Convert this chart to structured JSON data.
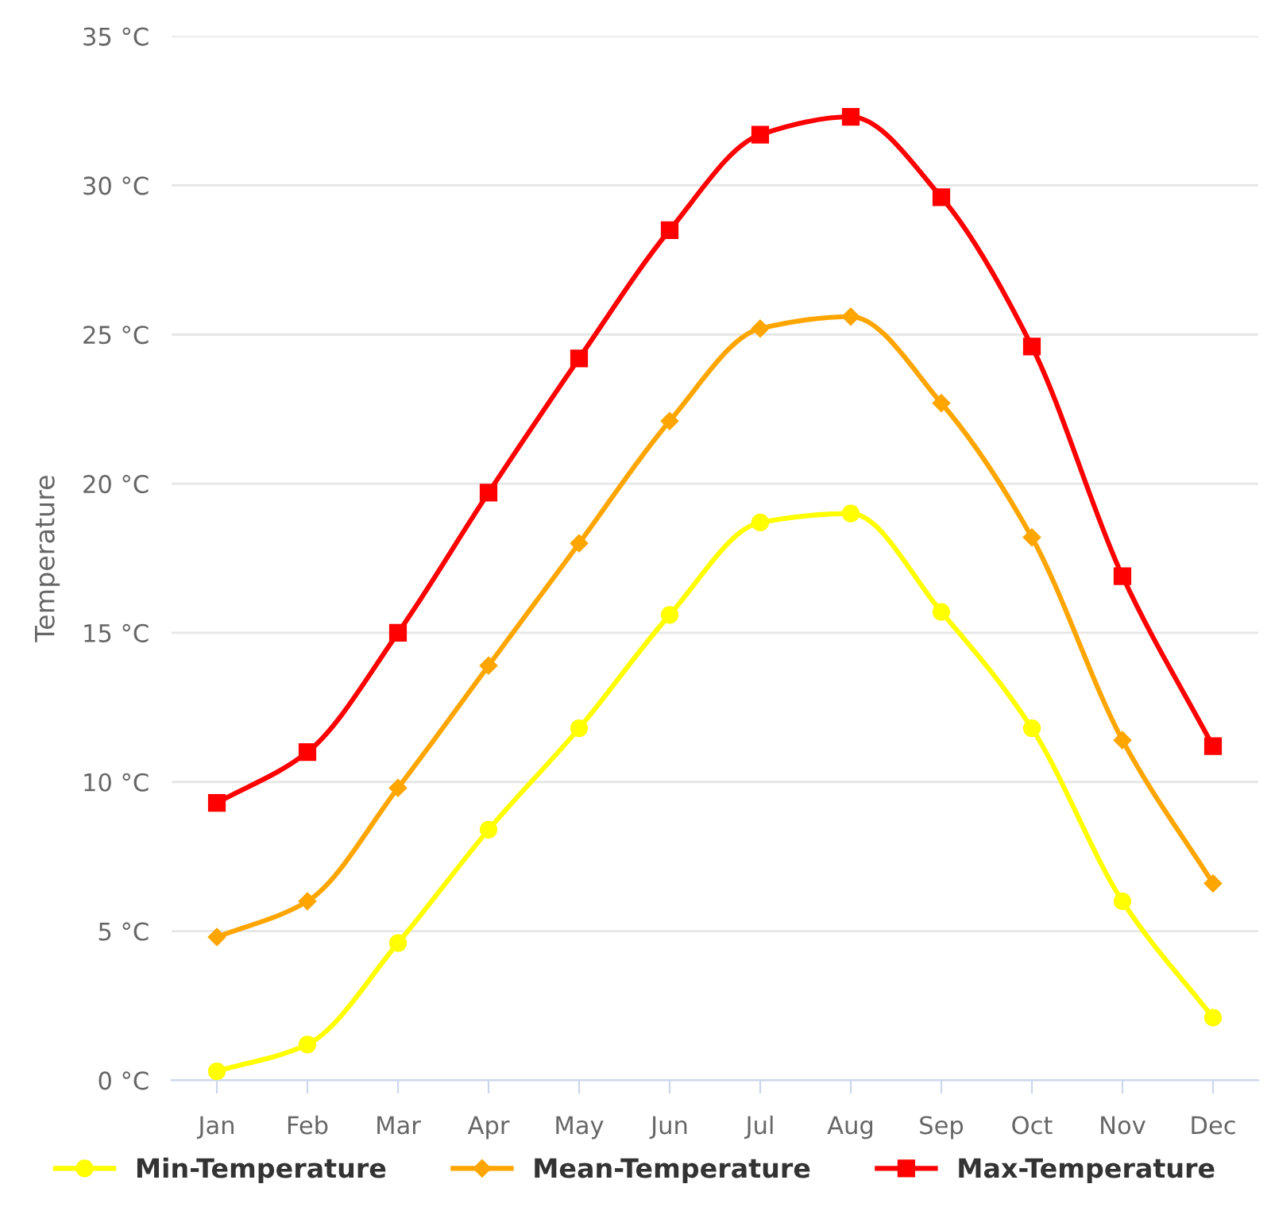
{
  "chart_data": {
    "type": "line",
    "categories": [
      "Jan",
      "Feb",
      "Mar",
      "Apr",
      "May",
      "Jun",
      "Jul",
      "Aug",
      "Sep",
      "Oct",
      "Nov",
      "Dec"
    ],
    "ylabel": "Temperature",
    "ylim": [
      0,
      35
    ],
    "yticks": [
      {
        "value": 0,
        "label": "0 °C"
      },
      {
        "value": 5,
        "label": "5 °C"
      },
      {
        "value": 10,
        "label": "10 °C"
      },
      {
        "value": 15,
        "label": "15 °C"
      },
      {
        "value": 20,
        "label": "20 °C"
      },
      {
        "value": 25,
        "label": "25 °C"
      },
      {
        "value": 30,
        "label": "30 °C"
      },
      {
        "value": 35,
        "label": "35 °C"
      }
    ],
    "grid": "y",
    "legend": "bottom",
    "series": [
      {
        "name": "Min-Temperature",
        "color": "#ffff00",
        "marker": "circle",
        "values": [
          0.3,
          1.2,
          4.6,
          8.4,
          11.8,
          15.6,
          18.7,
          19.0,
          15.7,
          11.8,
          6.0,
          2.1
        ]
      },
      {
        "name": "Mean-Temperature",
        "color": "#ffa500",
        "marker": "diamond",
        "values": [
          4.8,
          6.0,
          9.8,
          13.9,
          18.0,
          22.1,
          25.2,
          25.6,
          22.7,
          18.2,
          11.4,
          6.6
        ]
      },
      {
        "name": "Max-Temperature",
        "color": "#ff0000",
        "marker": "square",
        "values": [
          9.3,
          11.0,
          15.0,
          19.7,
          24.2,
          28.5,
          31.7,
          32.3,
          29.6,
          24.6,
          16.9,
          11.2
        ]
      }
    ]
  }
}
